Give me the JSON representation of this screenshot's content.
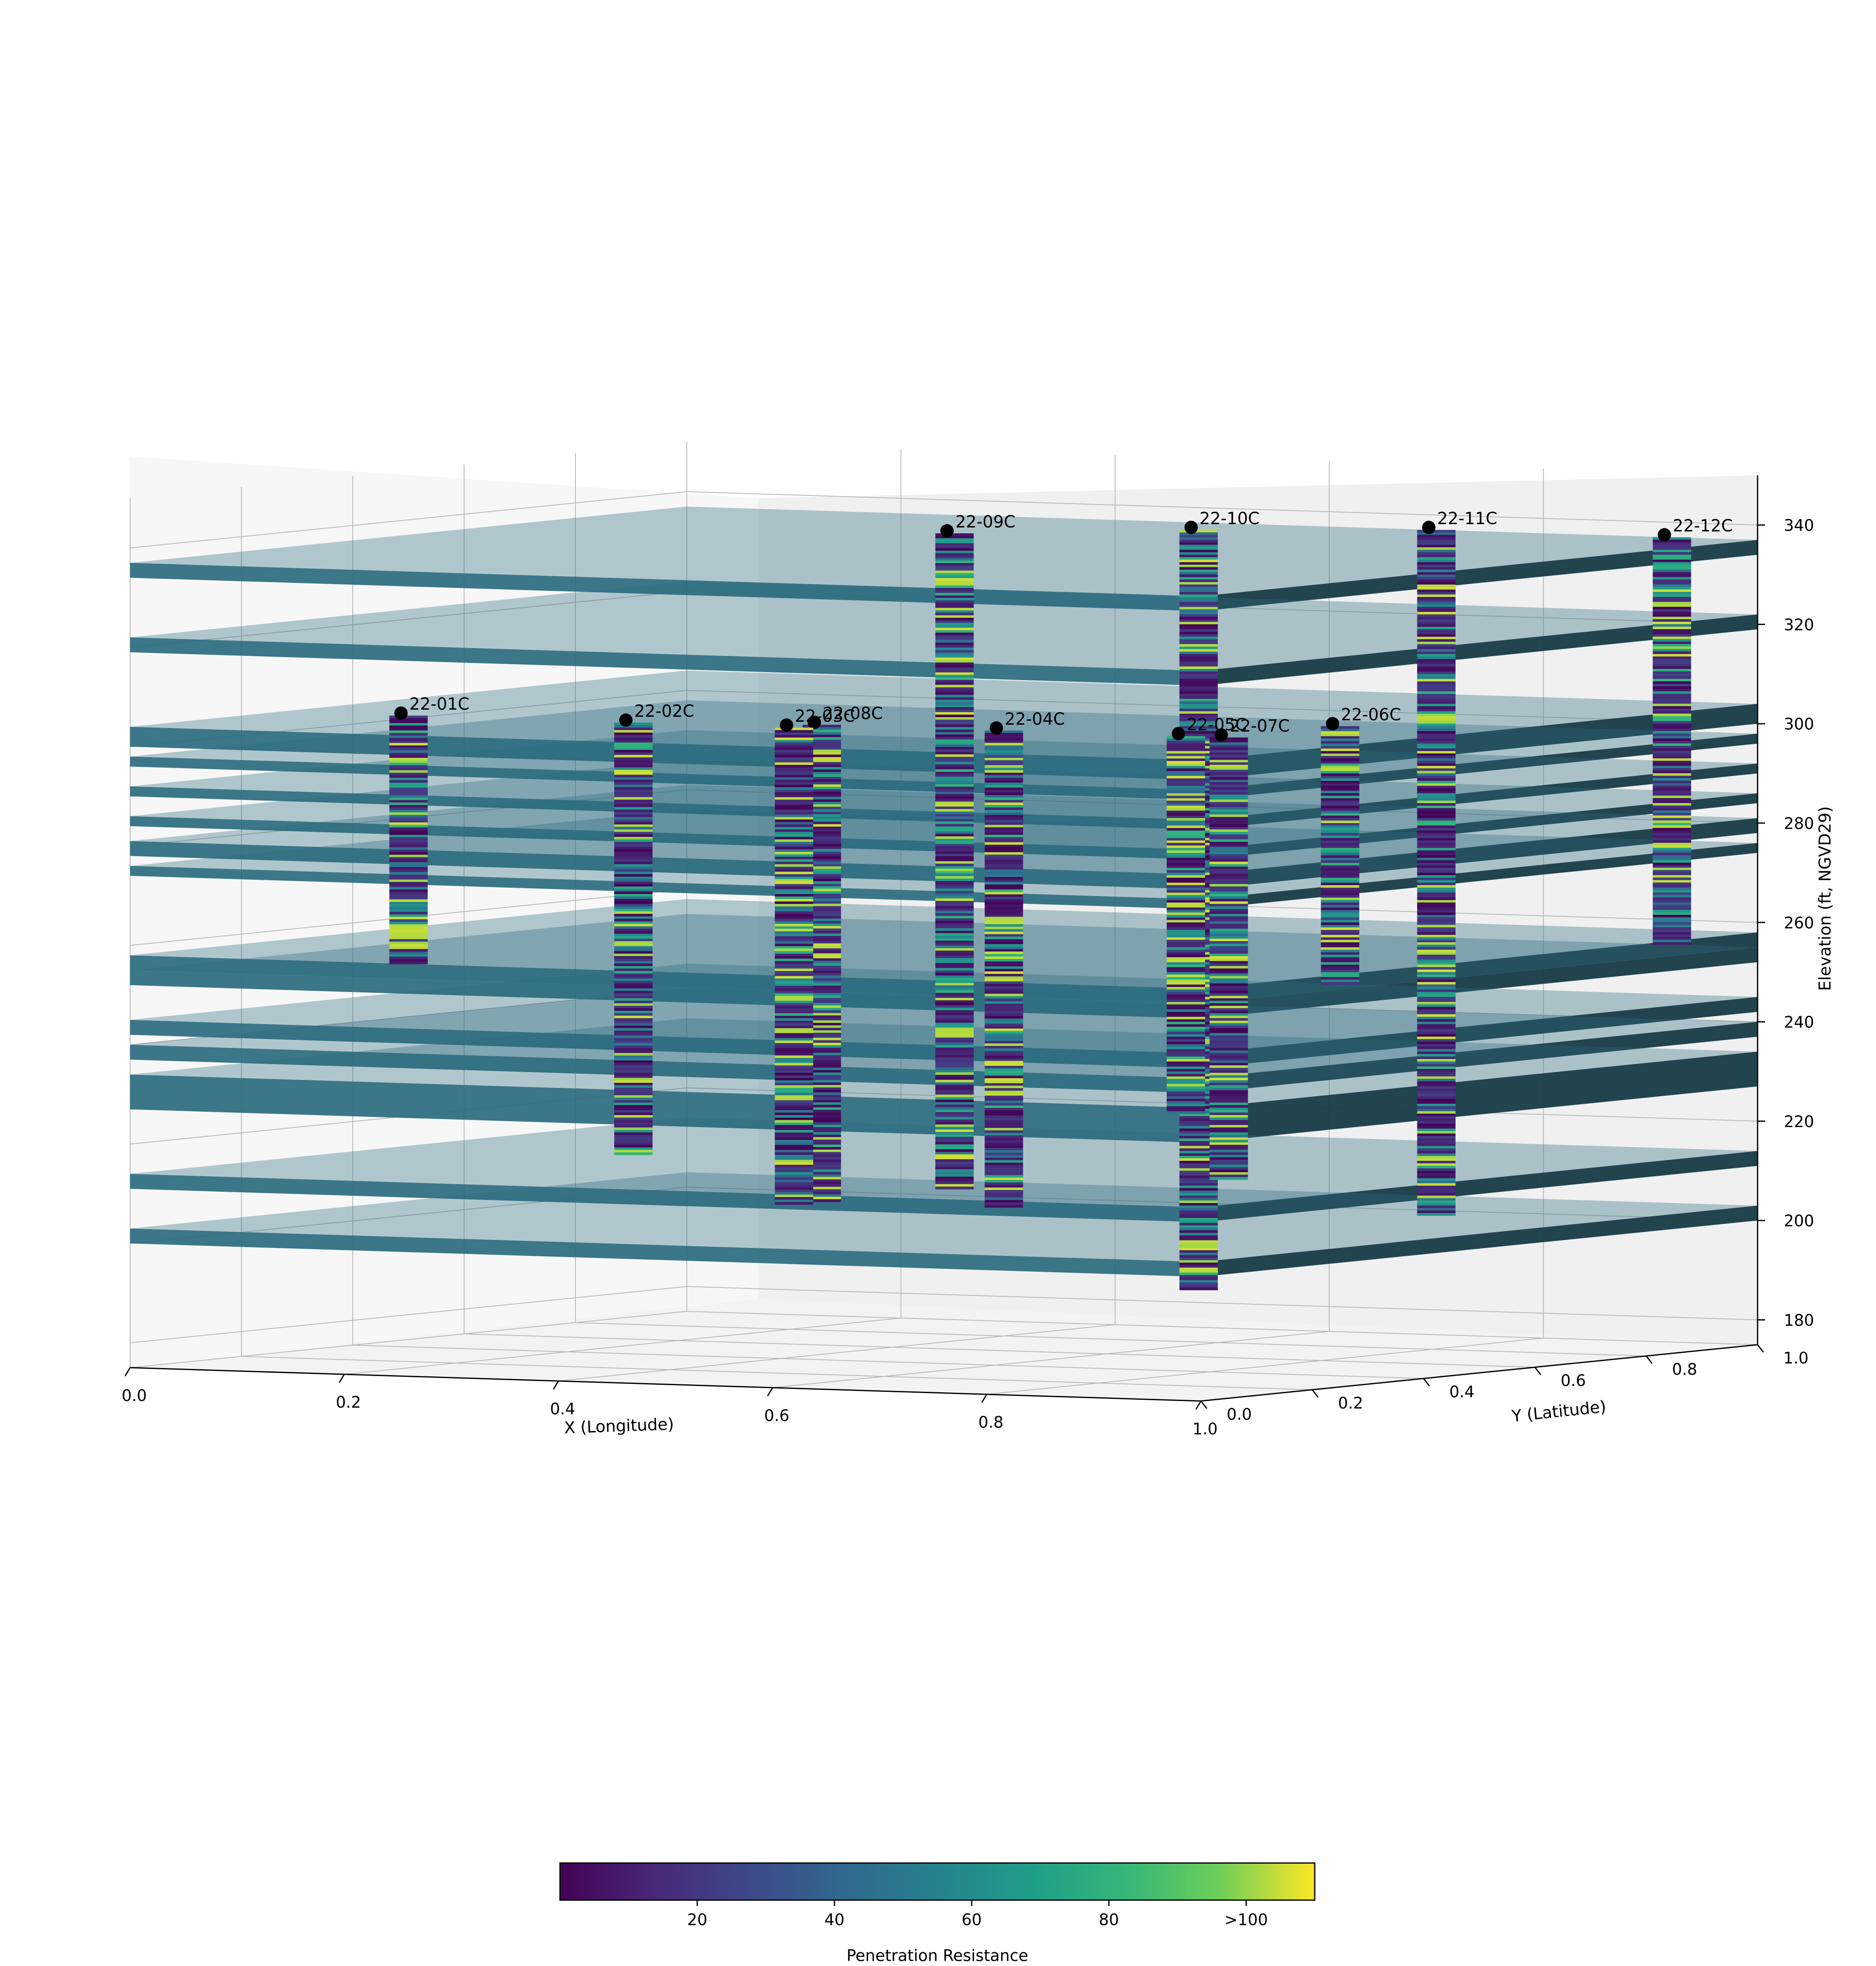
{
  "chart_data": {
    "type": "3d-borehole-profile",
    "title": "",
    "xlabel": "X (Longitude)",
    "ylabel": "Y (Latitude)",
    "zlabel": "Elevation (ft, NGVD29)",
    "x_ticks": [
      "0.0",
      "0.2",
      "0.4",
      "0.6",
      "0.8",
      "1.0"
    ],
    "y_ticks": [
      "0.0",
      "0.2",
      "0.4",
      "0.6",
      "0.8",
      "1.0"
    ],
    "z_ticks": [
      "180",
      "200",
      "220",
      "240",
      "260",
      "280",
      "300",
      "320",
      "340"
    ],
    "xlim": [
      0,
      1
    ],
    "ylim": [
      0,
      1
    ],
    "zlim": [
      175,
      350
    ],
    "grid": true,
    "colormap": "viridis",
    "colorbar": {
      "label": "Penetration Resistance",
      "ticks": [
        "20",
        "40",
        "60",
        "80",
        ">100"
      ],
      "tick_values": [
        20,
        40,
        60,
        80,
        100
      ],
      "range": [
        0,
        110
      ],
      "placement": "bottom"
    },
    "colors": {
      "layer_face": "#2a6b7e",
      "layer_side": "#163a45",
      "marker": "#000000"
    },
    "boreholes": [
      {
        "name": "22-01C",
        "x": 0.26,
        "y": 0.0,
        "top": 308,
        "bottom": 258
      },
      {
        "name": "22-02C",
        "x": 0.47,
        "y": 0.0,
        "top": 308,
        "bottom": 221
      },
      {
        "name": "22-03C",
        "x": 0.62,
        "y": 0.0,
        "top": 308,
        "bottom": 212
      },
      {
        "name": "22-04C",
        "x": 0.79,
        "y": 0.05,
        "top": 308,
        "bottom": 212
      },
      {
        "name": "22-05C",
        "x": 0.96,
        "y": 0.05,
        "top": 308,
        "bottom": 232
      },
      {
        "name": "22-06C",
        "x": 1.0,
        "y": 0.25,
        "top": 308,
        "bottom": 256
      },
      {
        "name": "22-07C",
        "x": 1.0,
        "y": 0.05,
        "top": 308,
        "bottom": 219
      },
      {
        "name": "22-08C",
        "x": 0.62,
        "y": 0.05,
        "top": 308,
        "bottom": 212
      },
      {
        "name": "22-09C",
        "x": 0.38,
        "y": 0.75,
        "top": 337,
        "bottom": 205
      },
      {
        "name": "22-10C",
        "x": 0.53,
        "y": 0.9,
        "top": 337,
        "bottom": 184
      },
      {
        "name": "22-11C",
        "x": 0.7,
        "y": 1.0,
        "top": 337,
        "bottom": 199
      },
      {
        "name": "22-12C",
        "x": 0.92,
        "y": 1.0,
        "top": 337,
        "bottom": 255
      }
    ],
    "layers": [
      {
        "top": 337,
        "bottom": 334
      },
      {
        "top": 322,
        "bottom": 319
      },
      {
        "top": 304,
        "bottom": 300
      },
      {
        "top": 298,
        "bottom": 296
      },
      {
        "top": 292,
        "bottom": 290
      },
      {
        "top": 286,
        "bottom": 284
      },
      {
        "top": 281,
        "bottom": 278
      },
      {
        "top": 276,
        "bottom": 274
      },
      {
        "top": 258,
        "bottom": 255
      },
      {
        "top": 255,
        "bottom": 252
      },
      {
        "top": 245,
        "bottom": 242
      },
      {
        "top": 240,
        "bottom": 237
      },
      {
        "top": 234,
        "bottom": 227
      },
      {
        "top": 214,
        "bottom": 211
      },
      {
        "top": 203,
        "bottom": 200
      }
    ]
  }
}
